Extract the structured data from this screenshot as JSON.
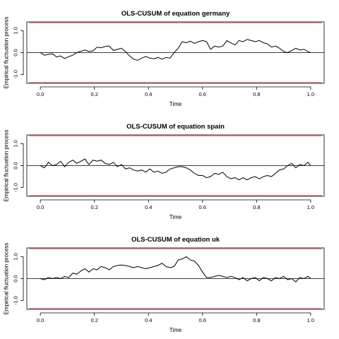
{
  "chart_data": [
    {
      "type": "line",
      "title": "OLS-CUSUM of equation germany",
      "xlabel": "Time",
      "ylabel": "Empirical fluctuation process",
      "xlim": [
        -0.05,
        1.05
      ],
      "ylim": [
        -1.4,
        1.4
      ],
      "xticks": [
        "0.0",
        "0.2",
        "0.4",
        "0.6",
        "0.8",
        "1.0"
      ],
      "yticks": [
        "-1.0",
        "0.0",
        "1.0"
      ],
      "boundary": 1.36,
      "colors": {
        "process": "#000000",
        "boundary": "#e0505a",
        "zero": "#000000"
      },
      "series": [
        {
          "x": [
            0,
            0.015,
            0.03,
            0.045,
            0.06,
            0.075,
            0.09,
            0.105,
            0.12,
            0.135,
            0.15,
            0.165,
            0.18,
            0.195,
            0.21,
            0.225,
            0.24,
            0.255,
            0.27,
            0.285,
            0.3,
            0.315,
            0.33,
            0.345,
            0.36,
            0.375,
            0.39,
            0.405,
            0.42,
            0.435,
            0.45,
            0.465,
            0.48,
            0.495,
            0.51,
            0.525,
            0.54,
            0.555,
            0.57,
            0.585,
            0.6,
            0.615,
            0.63,
            0.645,
            0.66,
            0.675,
            0.69,
            0.705,
            0.72,
            0.735,
            0.75,
            0.765,
            0.78,
            0.795,
            0.81,
            0.825,
            0.84,
            0.855,
            0.87,
            0.885,
            0.9,
            0.915,
            0.93,
            0.945,
            0.96,
            0.975,
            0.99,
            1.0
          ],
          "y": [
            0,
            -0.12,
            -0.08,
            -0.05,
            -0.2,
            -0.15,
            -0.27,
            -0.18,
            -0.12,
            0,
            0.06,
            0.12,
            0.05,
            0.08,
            0.25,
            0.22,
            0.28,
            0.3,
            0.1,
            0.15,
            0.2,
            0.05,
            -0.15,
            -0.3,
            -0.35,
            -0.25,
            -0.18,
            -0.25,
            -0.28,
            -0.22,
            -0.3,
            -0.22,
            -0.25,
            0,
            0.2,
            0.5,
            0.45,
            0.52,
            0.42,
            0.5,
            0.55,
            0.5,
            0.15,
            0.3,
            0.25,
            0.3,
            0.55,
            0.45,
            0.35,
            0.55,
            0.5,
            0.6,
            0.55,
            0.5,
            0.55,
            0.45,
            0.4,
            0.25,
            0.3,
            0.2,
            0.05,
            0,
            0.1,
            0.2,
            0.12,
            0.15,
            0.05,
            0
          ]
        }
      ]
    },
    {
      "type": "line",
      "title": "OLS-CUSUM of equation spain",
      "xlabel": "Time",
      "ylabel": "Empirical fluctuation process",
      "xlim": [
        -0.05,
        1.05
      ],
      "ylim": [
        -1.4,
        1.4
      ],
      "xticks": [
        "0.0",
        "0.2",
        "0.4",
        "0.6",
        "0.8",
        "1.0"
      ],
      "yticks": [
        "-1.0",
        "0.0",
        "1.0"
      ],
      "boundary": 1.36,
      "colors": {
        "process": "#000000",
        "boundary": "#e0505a",
        "zero": "#000000"
      },
      "series": [
        {
          "x": [
            0,
            0.015,
            0.03,
            0.045,
            0.06,
            0.075,
            0.09,
            0.105,
            0.12,
            0.135,
            0.15,
            0.165,
            0.18,
            0.195,
            0.21,
            0.225,
            0.24,
            0.255,
            0.27,
            0.285,
            0.3,
            0.315,
            0.33,
            0.345,
            0.36,
            0.375,
            0.39,
            0.405,
            0.42,
            0.435,
            0.45,
            0.465,
            0.48,
            0.495,
            0.51,
            0.525,
            0.54,
            0.555,
            0.57,
            0.585,
            0.6,
            0.615,
            0.63,
            0.645,
            0.66,
            0.675,
            0.69,
            0.705,
            0.72,
            0.735,
            0.75,
            0.765,
            0.78,
            0.795,
            0.81,
            0.825,
            0.84,
            0.855,
            0.87,
            0.885,
            0.9,
            0.915,
            0.93,
            0.945,
            0.96,
            0.975,
            0.99,
            1.0
          ],
          "y": [
            0,
            -0.1,
            0.15,
            0,
            0.05,
            0.2,
            -0.05,
            0.15,
            0.25,
            0.1,
            0.2,
            0.3,
            0.05,
            0.25,
            0.2,
            0.25,
            0.1,
            0.05,
            0.15,
            -0.05,
            0.05,
            -0.15,
            -0.1,
            -0.2,
            -0.25,
            -0.2,
            -0.3,
            -0.15,
            -0.3,
            -0.25,
            -0.35,
            -0.3,
            -0.15,
            -0.1,
            -0.05,
            -0.05,
            -0.1,
            -0.2,
            -0.35,
            -0.45,
            -0.45,
            -0.55,
            -0.5,
            -0.35,
            -0.4,
            -0.3,
            -0.5,
            -0.6,
            -0.55,
            -0.65,
            -0.55,
            -0.65,
            -0.55,
            -0.5,
            -0.6,
            -0.5,
            -0.45,
            -0.5,
            -0.35,
            -0.2,
            -0.15,
            0,
            0.1,
            -0.1,
            0.05,
            0,
            0.15,
            0
          ]
        }
      ]
    },
    {
      "type": "line",
      "title": "OLS-CUSUM of equation uk",
      "xlabel": "Time",
      "ylabel": "Empirical fluctuation process",
      "xlim": [
        -0.05,
        1.05
      ],
      "ylim": [
        -1.4,
        1.4
      ],
      "xticks": [
        "0.0",
        "0.2",
        "0.4",
        "0.6",
        "0.8",
        "1.0"
      ],
      "yticks": [
        "-1.0",
        "0.0",
        "1.0"
      ],
      "boundary": 1.36,
      "colors": {
        "process": "#000000",
        "boundary": "#e0505a",
        "zero": "#000000"
      },
      "series": [
        {
          "x": [
            0,
            0.015,
            0.03,
            0.045,
            0.06,
            0.075,
            0.09,
            0.105,
            0.12,
            0.135,
            0.15,
            0.165,
            0.18,
            0.195,
            0.21,
            0.225,
            0.24,
            0.255,
            0.27,
            0.285,
            0.3,
            0.315,
            0.33,
            0.345,
            0.36,
            0.375,
            0.39,
            0.405,
            0.42,
            0.435,
            0.45,
            0.465,
            0.48,
            0.495,
            0.51,
            0.525,
            0.54,
            0.555,
            0.57,
            0.585,
            0.6,
            0.615,
            0.63,
            0.645,
            0.66,
            0.675,
            0.69,
            0.705,
            0.72,
            0.735,
            0.75,
            0.765,
            0.78,
            0.795,
            0.81,
            0.825,
            0.84,
            0.855,
            0.87,
            0.885,
            0.9,
            0.915,
            0.93,
            0.945,
            0.96,
            0.975,
            0.99,
            1.0
          ],
          "y": [
            0,
            -0.05,
            0.05,
            0,
            0.05,
            0,
            0.1,
            0.05,
            0.25,
            0.2,
            0.35,
            0.45,
            0.3,
            0.45,
            0.4,
            0.55,
            0.5,
            0.4,
            0.55,
            0.6,
            0.62,
            0.6,
            0.55,
            0.5,
            0.55,
            0.5,
            0.45,
            0.5,
            0.55,
            0.6,
            0.7,
            0.55,
            0.5,
            0.55,
            0.85,
            0.9,
            1.0,
            0.85,
            0.8,
            0.6,
            0.3,
            0.05,
            0.05,
            0.1,
            0.15,
            0.1,
            0.05,
            0.1,
            0.05,
            -0.05,
            0.05,
            -0.1,
            0,
            0.05,
            -0.1,
            0.05,
            0,
            -0.1,
            0.05,
            0,
            0.1,
            -0.05,
            0,
            -0.15,
            0.05,
            0,
            0.1,
            0
          ]
        }
      ]
    }
  ]
}
